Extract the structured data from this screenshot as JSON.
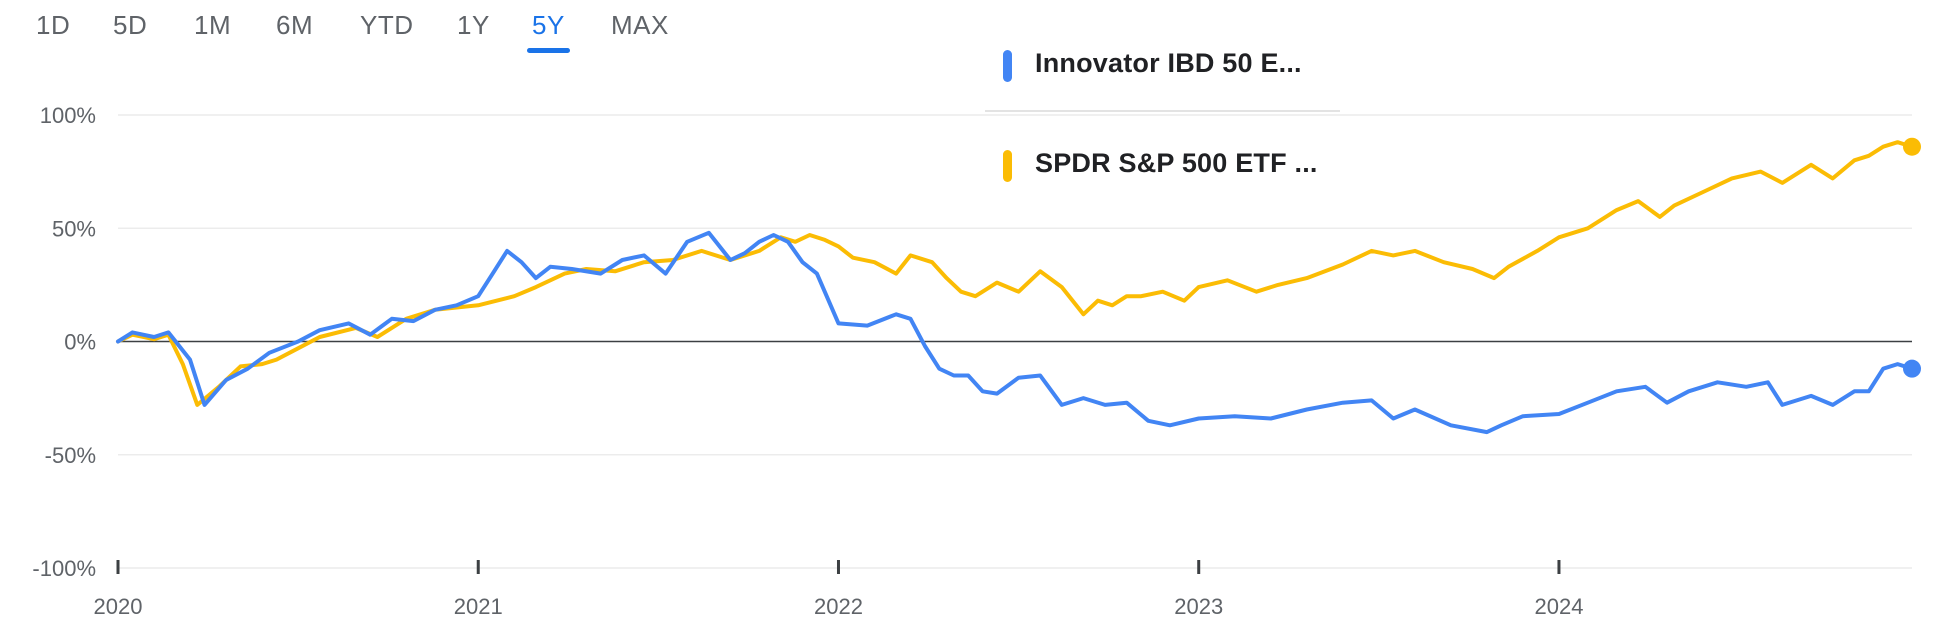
{
  "range_tabs": [
    {
      "label": "1D",
      "active": false
    },
    {
      "label": "5D",
      "active": false
    },
    {
      "label": "1M",
      "active": false
    },
    {
      "label": "6M",
      "active": false
    },
    {
      "label": "YTD",
      "active": false
    },
    {
      "label": "1Y",
      "active": false
    },
    {
      "label": "5Y",
      "active": true
    },
    {
      "label": "MAX",
      "active": false
    }
  ],
  "legend": [
    {
      "label": "Innovator IBD 50 E...",
      "color": "#4285f4"
    },
    {
      "label": "SPDR S&P 500 ETF ...",
      "color": "#fbbc04"
    }
  ],
  "chart_data": {
    "type": "line",
    "title": "",
    "xlabel": "",
    "ylabel": "",
    "xlim": [
      2020.0,
      2024.98
    ],
    "ylim": [
      -100,
      100
    ],
    "y_ticks": [
      "100%",
      "50%",
      "0%",
      "-50%",
      "-100%"
    ],
    "y_tick_values": [
      100,
      50,
      0,
      -50,
      -100
    ],
    "x_ticks": [
      "2020",
      "2021",
      "2022",
      "2023",
      "2024"
    ],
    "x_tick_values": [
      2020,
      2021,
      2022,
      2023,
      2024
    ],
    "baseline": 0,
    "grid": true,
    "series": [
      {
        "name": "Innovator IBD 50 E...",
        "color": "#4285f4",
        "x": [
          2020.0,
          2020.04,
          2020.1,
          2020.14,
          2020.2,
          2020.24,
          2020.3,
          2020.36,
          2020.42,
          2020.5,
          2020.56,
          2020.64,
          2020.7,
          2020.76,
          2020.82,
          2020.88,
          2020.94,
          2021.0,
          2021.04,
          2021.08,
          2021.12,
          2021.16,
          2021.2,
          2021.26,
          2021.34,
          2021.4,
          2021.46,
          2021.52,
          2021.58,
          2021.64,
          2021.7,
          2021.74,
          2021.78,
          2021.82,
          2021.86,
          2021.9,
          2021.94,
          2022.0,
          2022.08,
          2022.16,
          2022.2,
          2022.24,
          2022.28,
          2022.32,
          2022.36,
          2022.4,
          2022.44,
          2022.5,
          2022.56,
          2022.62,
          2022.68,
          2022.74,
          2022.8,
          2022.86,
          2022.92,
          2023.0,
          2023.1,
          2023.2,
          2023.3,
          2023.4,
          2023.48,
          2023.54,
          2023.6,
          2023.7,
          2023.8,
          2023.84,
          2023.9,
          2024.0,
          2024.08,
          2024.16,
          2024.24,
          2024.3,
          2024.36,
          2024.44,
          2024.52,
          2024.58,
          2024.62,
          2024.7,
          2024.76,
          2024.82,
          2024.86,
          2024.9,
          2024.94,
          2024.98
        ],
        "y": [
          0,
          4,
          2,
          4,
          -8,
          -28,
          -17,
          -12,
          -5,
          0,
          5,
          8,
          3,
          10,
          9,
          14,
          16,
          20,
          30,
          40,
          35,
          28,
          33,
          32,
          30,
          36,
          38,
          30,
          44,
          48,
          36,
          39,
          44,
          47,
          44,
          35,
          30,
          8,
          7,
          12,
          10,
          -2,
          -12,
          -15,
          -15,
          -22,
          -23,
          -16,
          -15,
          -28,
          -25,
          -28,
          -27,
          -35,
          -37,
          -34,
          -33,
          -34,
          -30,
          -27,
          -26,
          -34,
          -30,
          -37,
          -40,
          -37,
          -33,
          -32,
          -27,
          -22,
          -20,
          -27,
          -22,
          -18,
          -20,
          -18,
          -28,
          -24,
          -28,
          -22,
          -22,
          -12,
          -10,
          -12
        ]
      },
      {
        "name": "SPDR S&P 500 ETF ...",
        "color": "#fbbc04",
        "x": [
          2020.0,
          2020.04,
          2020.1,
          2020.14,
          2020.18,
          2020.22,
          2020.28,
          2020.34,
          2020.4,
          2020.44,
          2020.5,
          2020.56,
          2020.66,
          2020.72,
          2020.8,
          2020.88,
          2020.94,
          2021.0,
          2021.1,
          2021.16,
          2021.24,
          2021.3,
          2021.38,
          2021.46,
          2021.54,
          2021.62,
          2021.7,
          2021.78,
          2021.84,
          2021.88,
          2021.92,
          2021.96,
          2022.0,
          2022.04,
          2022.1,
          2022.16,
          2022.2,
          2022.26,
          2022.3,
          2022.34,
          2022.38,
          2022.44,
          2022.5,
          2022.56,
          2022.62,
          2022.68,
          2022.72,
          2022.76,
          2022.8,
          2022.84,
          2022.9,
          2022.96,
          2023.0,
          2023.08,
          2023.16,
          2023.22,
          2023.3,
          2023.4,
          2023.48,
          2023.54,
          2023.6,
          2023.68,
          2023.76,
          2023.82,
          2023.86,
          2023.94,
          2024.0,
          2024.08,
          2024.16,
          2024.22,
          2024.28,
          2024.32,
          2024.4,
          2024.48,
          2024.56,
          2024.62,
          2024.7,
          2024.76,
          2024.82,
          2024.86,
          2024.9,
          2024.94,
          2024.98
        ],
        "y": [
          0,
          3,
          1,
          3,
          -10,
          -28,
          -20,
          -11,
          -10,
          -8,
          -3,
          2,
          6,
          2,
          10,
          14,
          15,
          16,
          20,
          24,
          30,
          32,
          31,
          35,
          36,
          40,
          36,
          40,
          46,
          44,
          47,
          45,
          42,
          37,
          35,
          30,
          38,
          35,
          28,
          22,
          20,
          26,
          22,
          31,
          24,
          12,
          18,
          16,
          20,
          20,
          22,
          18,
          24,
          27,
          22,
          25,
          28,
          34,
          40,
          38,
          40,
          35,
          32,
          28,
          33,
          40,
          46,
          50,
          58,
          62,
          55,
          60,
          66,
          72,
          75,
          70,
          78,
          72,
          80,
          82,
          86,
          88,
          86
        ]
      }
    ]
  }
}
